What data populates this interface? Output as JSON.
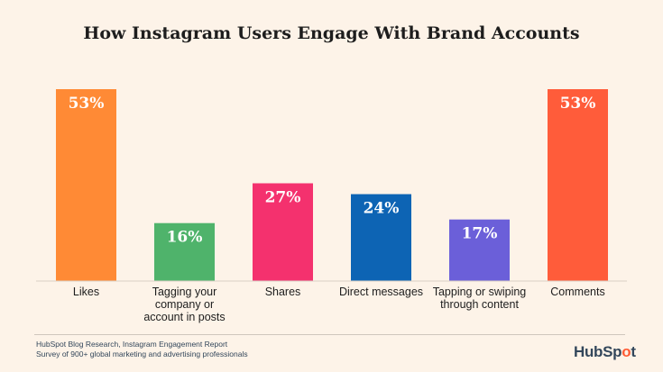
{
  "title": "How Instagram Users Engage With Brand Accounts",
  "chart_data": {
    "type": "bar",
    "title": "How Instagram Users Engage With Brand Accounts",
    "categories": [
      [
        "Likes"
      ],
      [
        "Tagging your",
        "company or",
        "account in posts"
      ],
      [
        "Shares"
      ],
      [
        "Direct messages"
      ],
      [
        "Tapping or swiping",
        "through content"
      ],
      [
        "Comments"
      ]
    ],
    "values": [
      53,
      16,
      27,
      24,
      17,
      53
    ],
    "value_labels": [
      "53%",
      "16%",
      "27%",
      "24%",
      "17%",
      "53%"
    ],
    "colors": [
      "#ff8a35",
      "#4fb36b",
      "#f4316e",
      "#0d64b4",
      "#6b5fd9",
      "#ff5c3a"
    ],
    "ylim": [
      0,
      53
    ],
    "grid": false,
    "legend": "none",
    "xlabel": "",
    "ylabel": ""
  },
  "source": {
    "line1": "HubSpot Blog Research, Instagram Engagement Report",
    "line2": "Survey of 900+ global marketing and advertising professionals"
  },
  "logo": {
    "text_a": "HubSp",
    "mark": "o",
    "text_b": "t"
  }
}
